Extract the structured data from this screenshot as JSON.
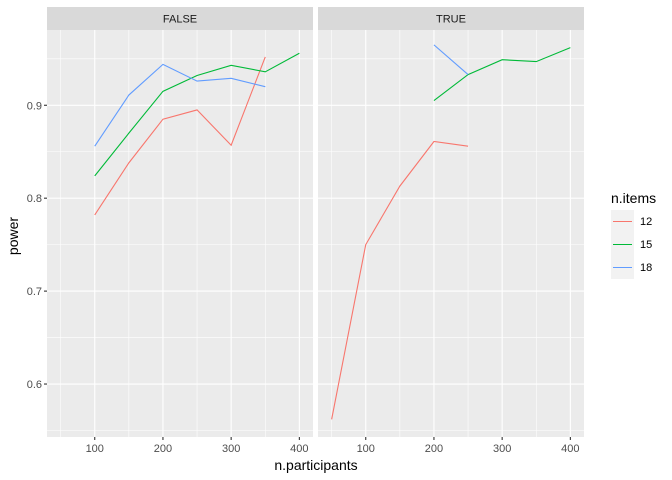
{
  "chart_data": {
    "type": "line",
    "facet_var": "",
    "panels": [
      {
        "label": "FALSE",
        "series": [
          {
            "name": "12",
            "x": [
              100,
              150,
              200,
              250,
              300,
              350
            ],
            "y": [
              0.782,
              0.838,
              0.885,
              0.895,
              0.857,
              0.952
            ]
          },
          {
            "name": "15",
            "x": [
              100,
              150,
              200,
              250,
              300,
              350,
              400
            ],
            "y": [
              0.824,
              0.87,
              0.915,
              0.932,
              0.943,
              0.936,
              0.956
            ]
          },
          {
            "name": "18",
            "x": [
              100,
              150,
              200,
              250,
              300,
              350
            ],
            "y": [
              0.856,
              0.911,
              0.944,
              0.926,
              0.929,
              0.92
            ]
          }
        ]
      },
      {
        "label": "TRUE",
        "series": [
          {
            "name": "12",
            "x": [
              50,
              100,
              150,
              200,
              250
            ],
            "y": [
              0.562,
              0.75,
              0.813,
              0.861,
              0.856
            ]
          },
          {
            "name": "15",
            "x": [
              200,
              250,
              300,
              350,
              400
            ],
            "y": [
              0.905,
              0.933,
              0.949,
              0.947,
              0.962
            ]
          },
          {
            "name": "18",
            "x": [
              200,
              250
            ],
            "y": [
              0.965,
              0.933
            ]
          }
        ]
      }
    ],
    "xlabel": "n.participants",
    "ylabel": "power",
    "xlim": [
      30,
      420
    ],
    "ylim": [
      0.543,
      0.981
    ],
    "x_ticks": [
      100,
      200,
      300,
      400
    ],
    "x_minor_ticks": [
      50,
      150,
      250,
      350
    ],
    "y_ticks": [
      0.6,
      0.7,
      0.8,
      0.9
    ],
    "y_tick_labels": [
      "0.6",
      "0.7",
      "0.8",
      "0.9"
    ],
    "y_minor_ticks": [
      0.55,
      0.65,
      0.75,
      0.85,
      0.95
    ],
    "grid": true,
    "legend": {
      "title": "n.items",
      "position": "right",
      "entries": [
        {
          "label": "12",
          "color": "#F8766D"
        },
        {
          "label": "15",
          "color": "#00BA38"
        },
        {
          "label": "18",
          "color": "#619CFF"
        }
      ]
    },
    "colors": {
      "12": "#F8766D",
      "15": "#00BA38",
      "18": "#619CFF"
    }
  }
}
